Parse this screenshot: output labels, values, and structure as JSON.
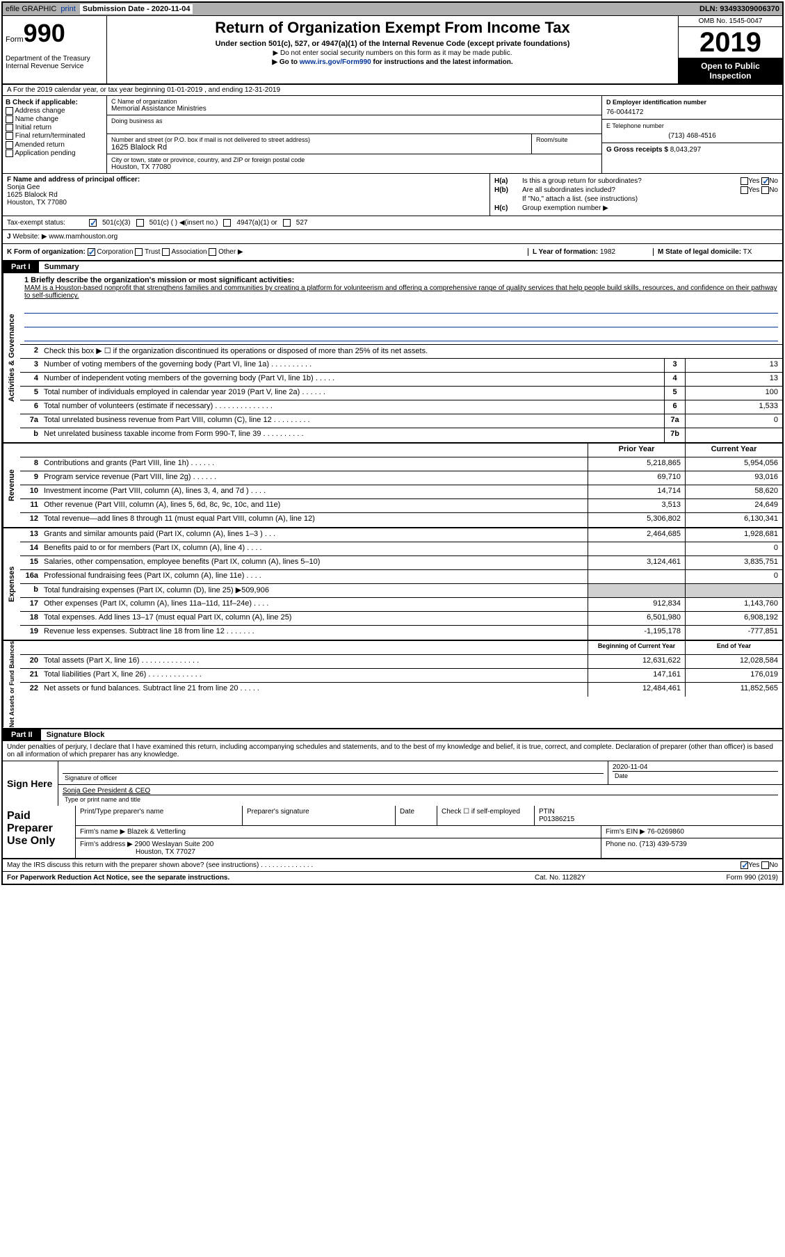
{
  "topbar": {
    "efile": "efile GRAPHIC",
    "print": "print",
    "sub_label": "Submission Date",
    "sub_date": "- 2020-11-04",
    "dln": "DLN: 93493309006370"
  },
  "header": {
    "form_label": "Form",
    "form_num": "990",
    "dept": "Department of the Treasury\nInternal Revenue Service",
    "title": "Return of Organization Exempt From Income Tax",
    "subtitle": "Under section 501(c), 527, or 4947(a)(1) of the Internal Revenue Code (except private foundations)",
    "note1": "▶ Do not enter social security numbers on this form as it may be made public.",
    "note2_pre": "▶ Go to ",
    "note2_link": "www.irs.gov/Form990",
    "note2_post": " for instructions and the latest information.",
    "omb": "OMB No. 1545-0047",
    "year": "2019",
    "public": "Open to Public Inspection"
  },
  "row_a": "A For the 2019 calendar year, or tax year beginning 01-01-2019   , and ending 12-31-2019",
  "section_b": {
    "label": "B Check if applicable:",
    "items": [
      "Address change",
      "Name change",
      "Initial return",
      "Final return/terminated",
      "Amended return",
      "Application pending"
    ]
  },
  "section_c": {
    "name_label": "C Name of organization",
    "name": "Memorial Assistance Ministries",
    "dba_label": "Doing business as",
    "addr_label": "Number and street (or P.O. box if mail is not delivered to street address)",
    "room_label": "Room/suite",
    "addr": "1625 Blalock Rd",
    "city_label": "City or town, state or province, country, and ZIP or foreign postal code",
    "city": "Houston, TX  77080"
  },
  "section_d": {
    "ein_label": "D Employer identification number",
    "ein": "76-0044172",
    "phone_label": "E Telephone number",
    "phone": "(713) 468-4516",
    "gross_label": "G Gross receipts $",
    "gross": "8,043,297"
  },
  "section_f": {
    "label": "F  Name and address of principal officer:",
    "name": "Sonja Gee",
    "addr1": "1625 Blalock Rd",
    "addr2": "Houston, TX  77080"
  },
  "section_h": {
    "a_label": "H(a)",
    "a_text": "Is this a group return for subordinates?",
    "b_label": "H(b)",
    "b_text": "Are all subordinates included?",
    "b_note": "If \"No,\" attach a list. (see instructions)",
    "c_label": "H(c)",
    "c_text": "Group exemption number ▶",
    "yes": "Yes",
    "no": "No"
  },
  "tax_status": {
    "label": "Tax-exempt status:",
    "opt1": "501(c)(3)",
    "opt2": "501(c) (   ) ◀(insert no.)",
    "opt3": "4947(a)(1) or",
    "opt4": "527"
  },
  "row_j": {
    "label": "J",
    "text": "Website: ▶  www.mamhouston.org"
  },
  "row_k": {
    "label": "K Form of organization:",
    "opts": [
      "Corporation",
      "Trust",
      "Association",
      "Other ▶"
    ],
    "l_label": "L Year of formation:",
    "l_val": "1982",
    "m_label": "M State of legal domicile:",
    "m_val": "TX"
  },
  "parts": {
    "p1": "Part I",
    "p1_title": "Summary",
    "p2": "Part II",
    "p2_title": "Signature Block"
  },
  "mission": {
    "label": "1  Briefly describe the organization's mission or most significant activities:",
    "text": "MAM is a Houston-based nonprofit that strengthens families and communities by creating a platform for volunteerism and offering a comprehensive range of quality services that help people build skills, resources, and confidence on their pathway to self-sufficiency."
  },
  "vert_labels": {
    "gov": "Activities & Governance",
    "rev": "Revenue",
    "exp": "Expenses",
    "net": "Net Assets or Fund Balances"
  },
  "gov_lines": [
    {
      "n": "2",
      "t": "Check this box ▶ ☐  if the organization discontinued its operations or disposed of more than 25% of its net assets."
    },
    {
      "n": "3",
      "t": "Number of voting members of the governing body (Part VI, line 1a)  .  .  .  .  .  .  .  .  .  .",
      "box": "3",
      "v": "13"
    },
    {
      "n": "4",
      "t": "Number of independent voting members of the governing body (Part VI, line 1b)  .  .  .  .  .",
      "box": "4",
      "v": "13"
    },
    {
      "n": "5",
      "t": "Total number of individuals employed in calendar year 2019 (Part V, line 2a)  .  .  .  .  .  .",
      "box": "5",
      "v": "100"
    },
    {
      "n": "6",
      "t": "Total number of volunteers (estimate if necessary)   .  .  .  .  .  .  .  .  .  .  .  .  .  .",
      "box": "6",
      "v": "1,533"
    },
    {
      "n": "7a",
      "t": "Total unrelated business revenue from Part VIII, column (C), line 12  .  .  .  .  .  .  .  .  .",
      "box": "7a",
      "v": "0"
    },
    {
      "n": "b",
      "t": "Net unrelated business taxable income from Form 990-T, line 39   .  .  .  .  .  .  .  .  .  .",
      "box": "7b",
      "v": ""
    }
  ],
  "col_hdrs": {
    "prior": "Prior Year",
    "current": "Current Year",
    "beg": "Beginning of Current Year",
    "end": "End of Year"
  },
  "rev_lines": [
    {
      "n": "8",
      "t": "Contributions and grants (Part VIII, line 1h)   .  .  .  .  .  .",
      "p": "5,218,865",
      "c": "5,954,056"
    },
    {
      "n": "9",
      "t": "Program service revenue (Part VIII, line 2g)   .  .  .  .  .  .",
      "p": "69,710",
      "c": "93,016"
    },
    {
      "n": "10",
      "t": "Investment income (Part VIII, column (A), lines 3, 4, and 7d )   .  .  .  .",
      "p": "14,714",
      "c": "58,620"
    },
    {
      "n": "11",
      "t": "Other revenue (Part VIII, column (A), lines 5, 6d, 8c, 9c, 10c, and 11e)",
      "p": "3,513",
      "c": "24,649"
    },
    {
      "n": "12",
      "t": "Total revenue—add lines 8 through 11 (must equal Part VIII, column (A), line 12)",
      "p": "5,306,802",
      "c": "6,130,341"
    }
  ],
  "exp_lines": [
    {
      "n": "13",
      "t": "Grants and similar amounts paid (Part IX, column (A), lines 1–3 )  .  .  .",
      "p": "2,464,685",
      "c": "1,928,681"
    },
    {
      "n": "14",
      "t": "Benefits paid to or for members (Part IX, column (A), line 4)  .  .  .  .",
      "p": "",
      "c": "0"
    },
    {
      "n": "15",
      "t": "Salaries, other compensation, employee benefits (Part IX, column (A), lines 5–10)",
      "p": "3,124,461",
      "c": "3,835,751"
    },
    {
      "n": "16a",
      "t": "Professional fundraising fees (Part IX, column (A), line 11e)  .  .  .  .",
      "p": "",
      "c": "0"
    },
    {
      "n": "b",
      "t": "Total fundraising expenses (Part IX, column (D), line 25) ▶509,906",
      "grey": true
    },
    {
      "n": "17",
      "t": "Other expenses (Part IX, column (A), lines 11a–11d, 11f–24e)   .  .  .  .",
      "p": "912,834",
      "c": "1,143,760"
    },
    {
      "n": "18",
      "t": "Total expenses. Add lines 13–17 (must equal Part IX, column (A), line 25)",
      "p": "6,501,980",
      "c": "6,908,192"
    },
    {
      "n": "19",
      "t": "Revenue less expenses. Subtract line 18 from line 12  .  .  .  .  .  .  .",
      "p": "-1,195,178",
      "c": "-777,851"
    }
  ],
  "net_lines": [
    {
      "n": "20",
      "t": "Total assets (Part X, line 16)  .  .  .  .  .  .  .  .  .  .  .  .  .  .",
      "p": "12,631,622",
      "c": "12,028,584"
    },
    {
      "n": "21",
      "t": "Total liabilities (Part X, line 26)   .  .  .  .  .  .  .  .  .  .  .  .  .",
      "p": "147,161",
      "c": "176,019"
    },
    {
      "n": "22",
      "t": "Net assets or fund balances. Subtract line 21 from line 20  .  .  .  .  .",
      "p": "12,484,461",
      "c": "11,852,565"
    }
  ],
  "sig": {
    "declaration": "Under penalties of perjury, I declare that I have examined this return, including accompanying schedules and statements, and to the best of my knowledge and belief, it is true, correct, and complete. Declaration of preparer (other than officer) is based on all information of which preparer has any knowledge.",
    "sign_here": "Sign Here",
    "sig_officer": "Signature of officer",
    "date_label": "Date",
    "date_val": "2020-11-04",
    "name_title": "Sonja Gee  President & CEO",
    "type_label": "Type or print name and title"
  },
  "paid": {
    "label": "Paid Preparer Use Only",
    "h1": "Print/Type preparer's name",
    "h2": "Preparer's signature",
    "h3": "Date",
    "h4_pre": "Check ☐ if self-employed",
    "h5": "PTIN",
    "ptin": "P01386215",
    "firm_label": "Firm's name    ▶",
    "firm": "Blazek & Vetterling",
    "ein_label": "Firm's EIN ▶",
    "ein": "76-0269860",
    "addr_label": "Firm's address ▶",
    "addr1": "2900 Weslayan Suite 200",
    "addr2": "Houston, TX  77027",
    "phone_label": "Phone no.",
    "phone": "(713) 439-5739"
  },
  "discuss": {
    "text": "May the IRS discuss this return with the preparer shown above? (see instructions)   .  .  .  .  .  .  .  .  .  .  .  .  .  .",
    "yes": "Yes",
    "no": "No"
  },
  "footer": {
    "left": "For Paperwork Reduction Act Notice, see the separate instructions.",
    "mid": "Cat. No. 11282Y",
    "right": "Form 990 (2019)"
  }
}
